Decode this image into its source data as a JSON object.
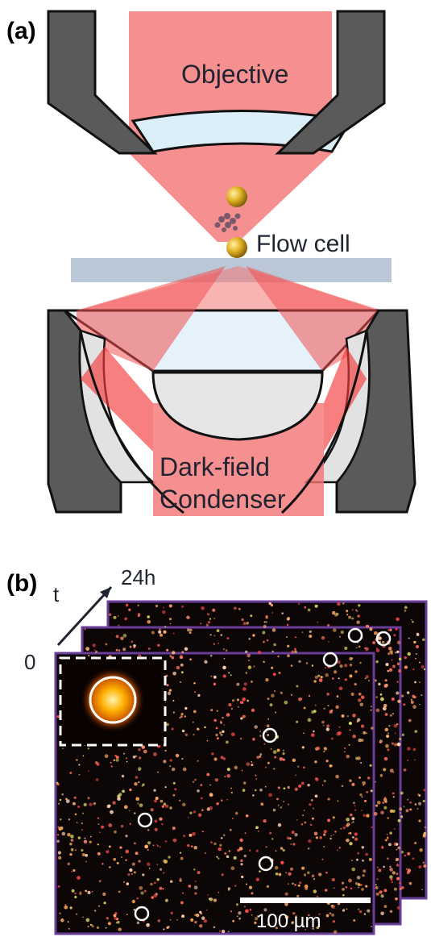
{
  "panel_a": {
    "label": "(a)",
    "objective_label": "Objective",
    "flow_cell_label": "Flow cell",
    "condenser_label_line1": "Dark-field",
    "condenser_label_line2": "Condenser"
  },
  "panel_b": {
    "label": "(b)",
    "time_axis_label": "t",
    "time_start": "0",
    "time_end": "24h",
    "scale_bar_label": "100 µm",
    "frame_count": 3
  },
  "colors": {
    "metal_gray": "#5a5a5a",
    "beam_red": "#f36b6b",
    "lens_fill": "#dceef8",
    "flow_cell": "#b9c7d6",
    "frame_border": "#6a3d9a",
    "gold_particle": "#e0b020"
  }
}
